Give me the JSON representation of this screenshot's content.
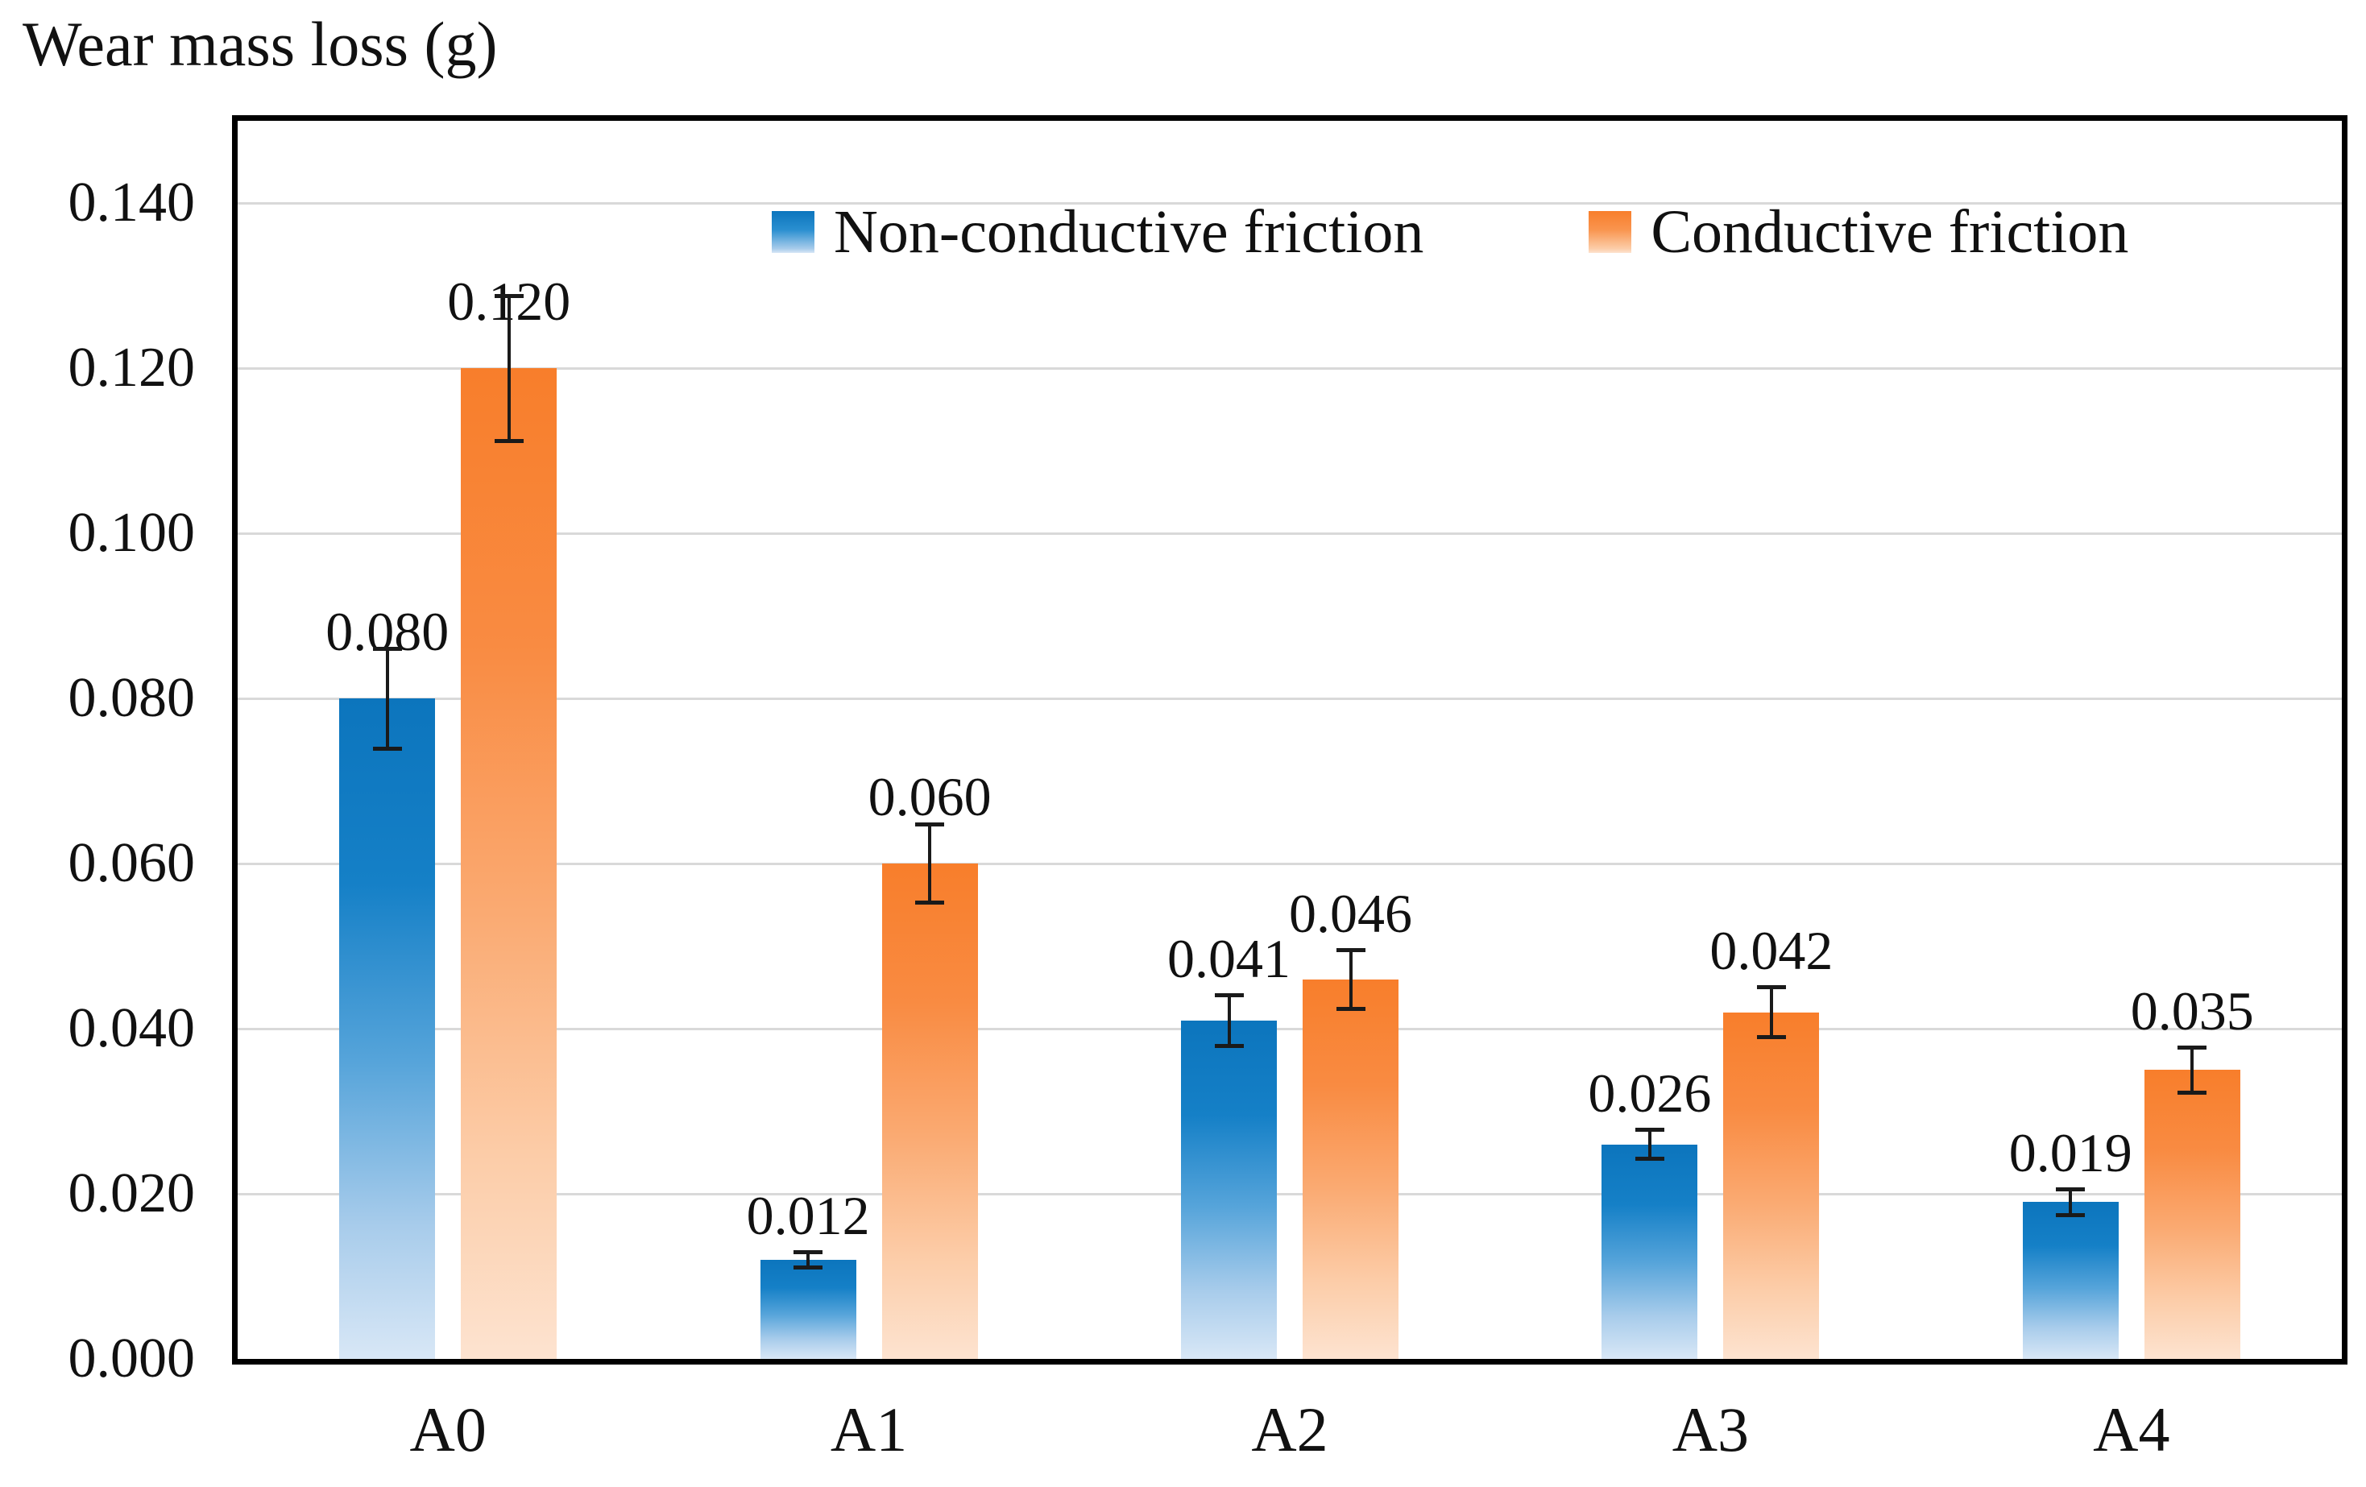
{
  "chart_data": {
    "type": "bar",
    "title": "Wear mass loss (g)",
    "categories": [
      "A0",
      "A1",
      "A2",
      "A3",
      "A4"
    ],
    "series": [
      {
        "name": "Non-conductive friction",
        "values": [
          0.08,
          0.012,
          0.041,
          0.026,
          0.019
        ],
        "data_labels": [
          "0.080",
          "0.012",
          "0.041",
          "0.026",
          "0.019"
        ],
        "errors": [
          0.0063,
          0.0012,
          0.0033,
          0.002,
          0.0018
        ],
        "color_top": "#0c75bd",
        "color_bottom": "#d8e7f6"
      },
      {
        "name": "Conductive friction",
        "values": [
          0.12,
          0.06,
          0.046,
          0.042,
          0.035
        ],
        "data_labels": [
          "0.120",
          "0.060",
          "0.046",
          "0.042",
          "0.035"
        ],
        "errors": [
          0.009,
          0.005,
          0.0038,
          0.0033,
          0.003
        ],
        "color_top": "#f87e2b",
        "color_bottom": "#fde3d0"
      }
    ],
    "xlabel": "",
    "ylabel": "Wear mass loss (g)",
    "y_axis": {
      "min": 0.0,
      "max": 0.15,
      "tick_step": 0.02,
      "tick_labels": [
        "0.000",
        "0.020",
        "0.040",
        "0.060",
        "0.080",
        "0.100",
        "0.120",
        "0.140"
      ]
    },
    "grid": "horizontal",
    "gridline_color": "#d9d9d9",
    "plot_border_color": "#000000",
    "error_bar_color": "#1a1a1a",
    "legend_position": "inside-top"
  }
}
